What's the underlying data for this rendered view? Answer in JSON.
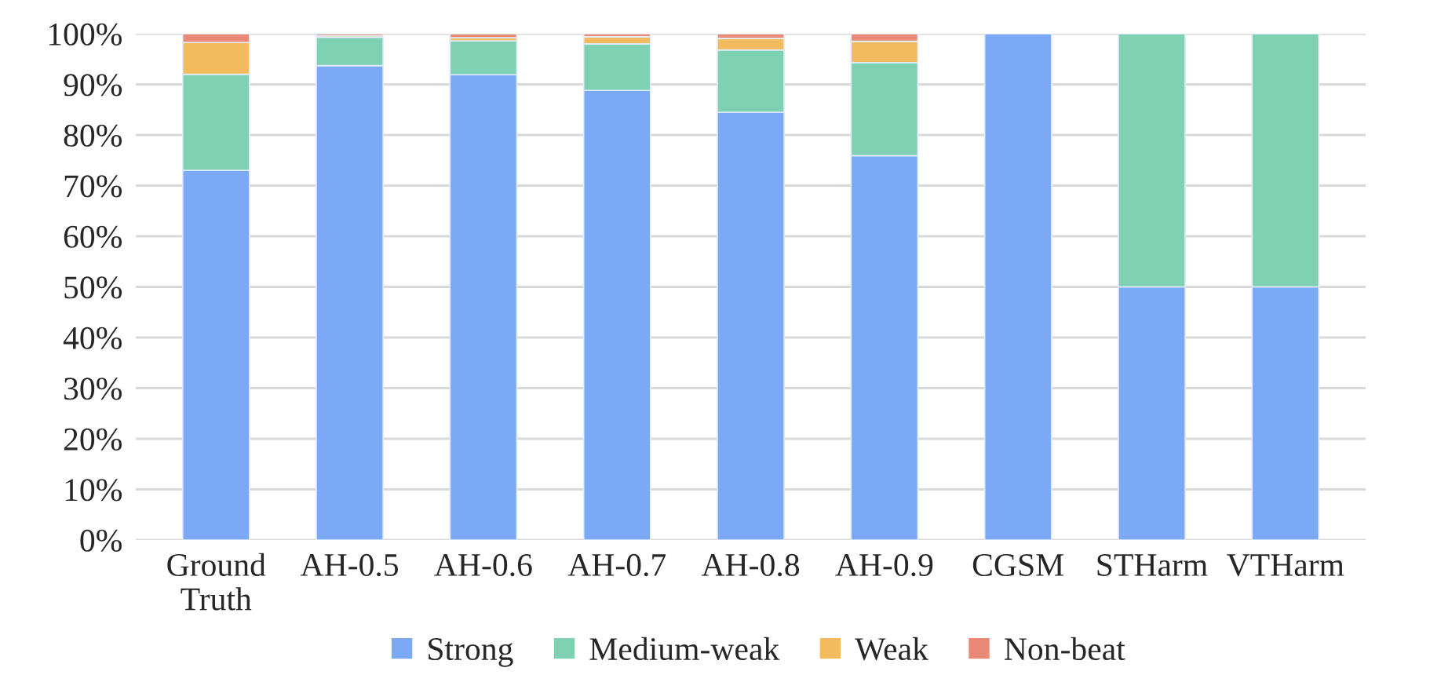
{
  "chart_data": {
    "type": "bar",
    "stacked": true,
    "categories": [
      "Ground\nTruth",
      "AH-0.5",
      "AH-0.6",
      "AH-0.7",
      "AH-0.8",
      "AH-0.9",
      "CGSM",
      "STHarm",
      "VTHarm"
    ],
    "series": [
      {
        "name": "Strong",
        "color": "#7ba9f6",
        "values": [
          73,
          93.7,
          91.9,
          88.8,
          84.5,
          75.9,
          100,
          50,
          50
        ]
      },
      {
        "name": "Medium-weak",
        "color": "#7fd1b4",
        "values": [
          19,
          5.6,
          6.7,
          9.2,
          12.3,
          18.4,
          0,
          50,
          50
        ]
      },
      {
        "name": "Weak",
        "color": "#f2bb5d",
        "values": [
          6.3,
          0.3,
          0.6,
          1.4,
          2.3,
          4.2,
          0,
          0,
          0
        ]
      },
      {
        "name": "Non-beat",
        "color": "#e98a77",
        "values": [
          1.7,
          0.4,
          0.8,
          0.6,
          0.9,
          1.5,
          0,
          0,
          0
        ]
      }
    ],
    "ylim": [
      0,
      100
    ],
    "yticks": [
      {
        "value": 0,
        "label": "0%"
      },
      {
        "value": 10,
        "label": "10%"
      },
      {
        "value": 20,
        "label": "20%"
      },
      {
        "value": 30,
        "label": "30%"
      },
      {
        "value": 40,
        "label": "40%"
      },
      {
        "value": 50,
        "label": "50%"
      },
      {
        "value": 60,
        "label": "60%"
      },
      {
        "value": 70,
        "label": "70%"
      },
      {
        "value": 80,
        "label": "80%"
      },
      {
        "value": 90,
        "label": "90%"
      },
      {
        "value": 100,
        "label": "100%"
      }
    ],
    "grid": "y",
    "legend": "bottom"
  }
}
